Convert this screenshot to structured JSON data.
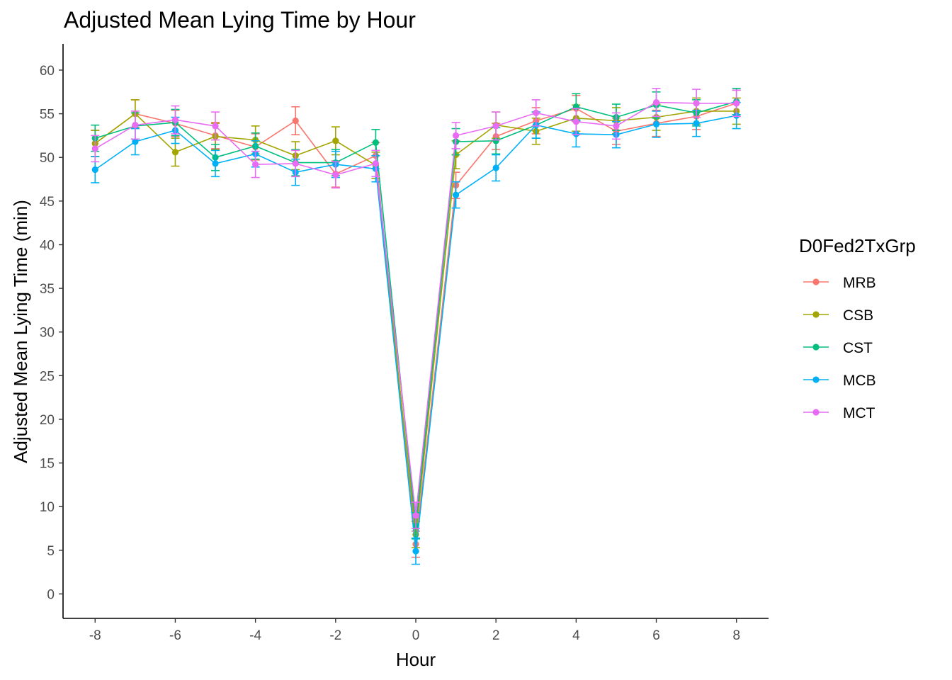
{
  "chart_data": {
    "type": "line",
    "title": "Adjusted Mean Lying Time by Hour",
    "xlabel": "Hour",
    "ylabel": "Adjusted Mean Lying Time (min)",
    "xlim": [
      -8.8,
      8.8
    ],
    "ylim": [
      -2.8,
      63
    ],
    "xticks": [
      -8,
      -6,
      -4,
      -2,
      0,
      2,
      4,
      6,
      8
    ],
    "xtick_labels": [
      "-8",
      "-6",
      "-4",
      "-2",
      "0",
      "2",
      "4",
      "6",
      "8"
    ],
    "yticks": [
      0,
      5,
      10,
      15,
      20,
      25,
      30,
      35,
      40,
      45,
      50,
      55,
      60
    ],
    "ytick_labels": [
      "0",
      "5",
      "10",
      "15",
      "20",
      "25",
      "30",
      "35",
      "40",
      "45",
      "50",
      "55",
      "60"
    ],
    "grid": false,
    "legend_title": "D0Fed2TxGrp",
    "legend_position": "right",
    "x": [
      -8,
      -7,
      -6,
      -5,
      -4,
      -3,
      -2,
      -1,
      0,
      1,
      2,
      3,
      4,
      5,
      6,
      7,
      8
    ],
    "series": [
      {
        "name": "MRB",
        "color": "#F8766D",
        "values": [
          51.6,
          55.0,
          53.9,
          52.5,
          51.2,
          54.2,
          48.1,
          50.2,
          5.7,
          46.8,
          52.4,
          54.2,
          55.6,
          53.0,
          53.9,
          54.7,
          56.2
        ],
        "errors": [
          1.5,
          1.6,
          1.5,
          1.5,
          1.5,
          1.6,
          1.5,
          1.5,
          1.5,
          1.5,
          1.5,
          1.5,
          1.5,
          1.5,
          1.5,
          1.5,
          1.5
        ]
      },
      {
        "name": "CSB",
        "color": "#A3A500",
        "values": [
          51.6,
          55.0,
          50.6,
          52.4,
          52.0,
          50.2,
          51.9,
          49.1,
          6.8,
          50.3,
          53.7,
          53.0,
          54.5,
          54.2,
          54.6,
          55.3,
          55.3
        ],
        "errors": [
          1.5,
          1.6,
          1.6,
          1.5,
          1.6,
          1.6,
          1.6,
          1.5,
          1.5,
          1.6,
          1.5,
          1.5,
          1.5,
          1.5,
          1.5,
          1.5,
          1.5
        ]
      },
      {
        "name": "CST",
        "color": "#00BF7D",
        "values": [
          52.2,
          53.6,
          54.0,
          50.0,
          51.3,
          49.4,
          49.4,
          51.7,
          7.8,
          51.8,
          51.9,
          53.7,
          55.8,
          54.6,
          56.0,
          55.1,
          56.4
        ],
        "errors": [
          1.5,
          1.5,
          1.5,
          1.5,
          1.5,
          1.5,
          1.5,
          1.5,
          1.5,
          1.5,
          1.5,
          1.5,
          1.5,
          1.5,
          1.5,
          1.5,
          1.5
        ]
      },
      {
        "name": "MCB",
        "color": "#00B0F6",
        "values": [
          48.6,
          51.8,
          53.1,
          49.3,
          50.4,
          48.3,
          49.2,
          48.7,
          4.9,
          45.7,
          48.8,
          53.7,
          52.7,
          52.6,
          53.8,
          53.9,
          54.8
        ],
        "errors": [
          1.5,
          1.5,
          1.5,
          1.5,
          1.5,
          1.5,
          1.5,
          1.5,
          1.5,
          1.5,
          1.5,
          1.5,
          1.5,
          1.5,
          1.5,
          1.5,
          1.5
        ]
      },
      {
        "name": "MCT",
        "color": "#E76BF3",
        "values": [
          51.0,
          53.7,
          54.3,
          53.6,
          49.2,
          49.3,
          48.0,
          49.3,
          9.0,
          52.5,
          53.6,
          55.1,
          54.1,
          53.6,
          56.3,
          56.2,
          56.2
        ],
        "errors": [
          1.5,
          1.6,
          1.6,
          1.6,
          1.5,
          1.5,
          1.5,
          1.5,
          1.5,
          1.5,
          1.6,
          1.5,
          1.5,
          1.5,
          1.6,
          1.6,
          1.5
        ]
      }
    ]
  }
}
